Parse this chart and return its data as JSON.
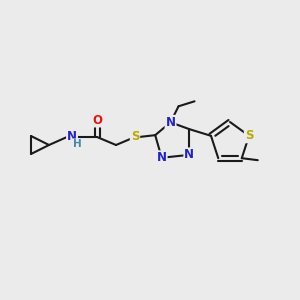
{
  "bg_color": "#ebebeb",
  "bond_color": "#1a1a1a",
  "bond_width": 1.5,
  "atoms": {
    "O": {
      "color": "#ee1111"
    },
    "N": {
      "color": "#2222cc"
    },
    "S": {
      "color": "#bbaa00"
    },
    "NH": {
      "color": "#2222cc"
    },
    "H_color": {
      "color": "#4488aa"
    },
    "C": {
      "color": "#1a1a1a"
    }
  },
  "font_size": 8.5
}
